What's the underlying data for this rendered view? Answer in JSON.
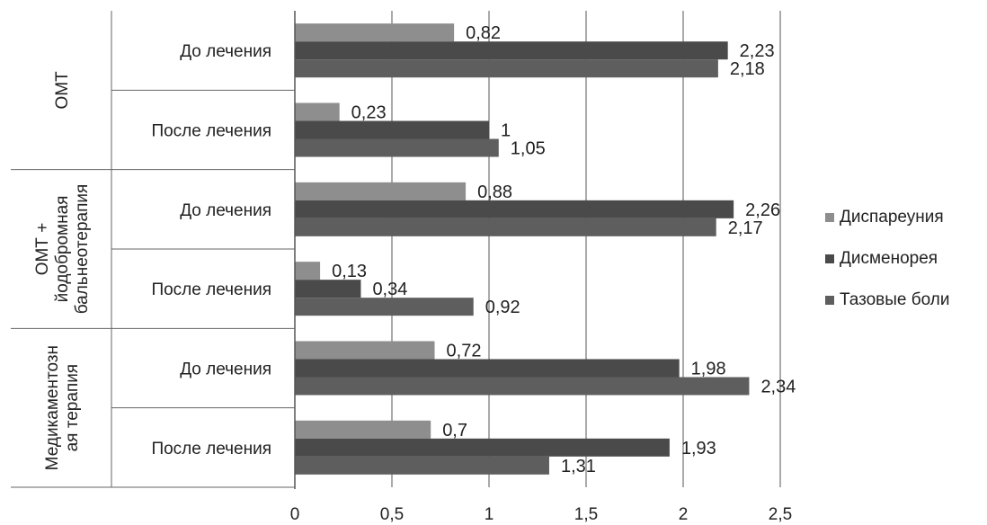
{
  "chart_data": {
    "type": "bar",
    "orientation": "horizontal",
    "groups": [
      {
        "label": "ОМТ",
        "label_lines": [
          "ОМТ"
        ],
        "subcategories": [
          "До лечения",
          "После лечения"
        ]
      },
      {
        "label": "ОМТ + йодобромная бальнеотерапия",
        "label_lines": [
          "ОМТ +",
          "йодобромная",
          "бальнеотерапия"
        ],
        "subcategories": [
          "До лечения",
          "После лечения"
        ]
      },
      {
        "label": "Медикаментозная терапия",
        "label_lines": [
          "Медикаментозн",
          "ая терапия"
        ],
        "subcategories": [
          "До лечения",
          "После лечения"
        ]
      }
    ],
    "series": [
      {
        "name": "Диспареуния",
        "color": "#8e8e8e",
        "values": [
          0.82,
          0.23,
          0.88,
          0.13,
          0.72,
          0.7
        ],
        "labels": [
          "0,82",
          "0,23",
          "0,88",
          "0,13",
          "0,72",
          "0,7"
        ]
      },
      {
        "name": "Дисменорея",
        "color": "#4a4a4a",
        "values": [
          2.23,
          1,
          2.26,
          0.34,
          1.98,
          1.93
        ],
        "labels": [
          "2,23",
          "1",
          "2,26",
          "0,34",
          "1,98",
          "1,93"
        ]
      },
      {
        "name": "Тазовые боли",
        "color": "#5e5e5e",
        "values": [
          2.18,
          1.05,
          2.17,
          0.92,
          2.34,
          1.31
        ],
        "labels": [
          "2,18",
          "1,05",
          "2,17",
          "0,92",
          "2,34",
          "1,31"
        ]
      }
    ],
    "xlim": [
      0,
      2.5
    ],
    "x_ticks": [
      0,
      0.5,
      1,
      1.5,
      2,
      2.5
    ],
    "x_tick_labels": [
      "0",
      "0,5",
      "1",
      "1,5",
      "2",
      "2,5"
    ],
    "grid": "vertical",
    "legend_position": "right"
  }
}
